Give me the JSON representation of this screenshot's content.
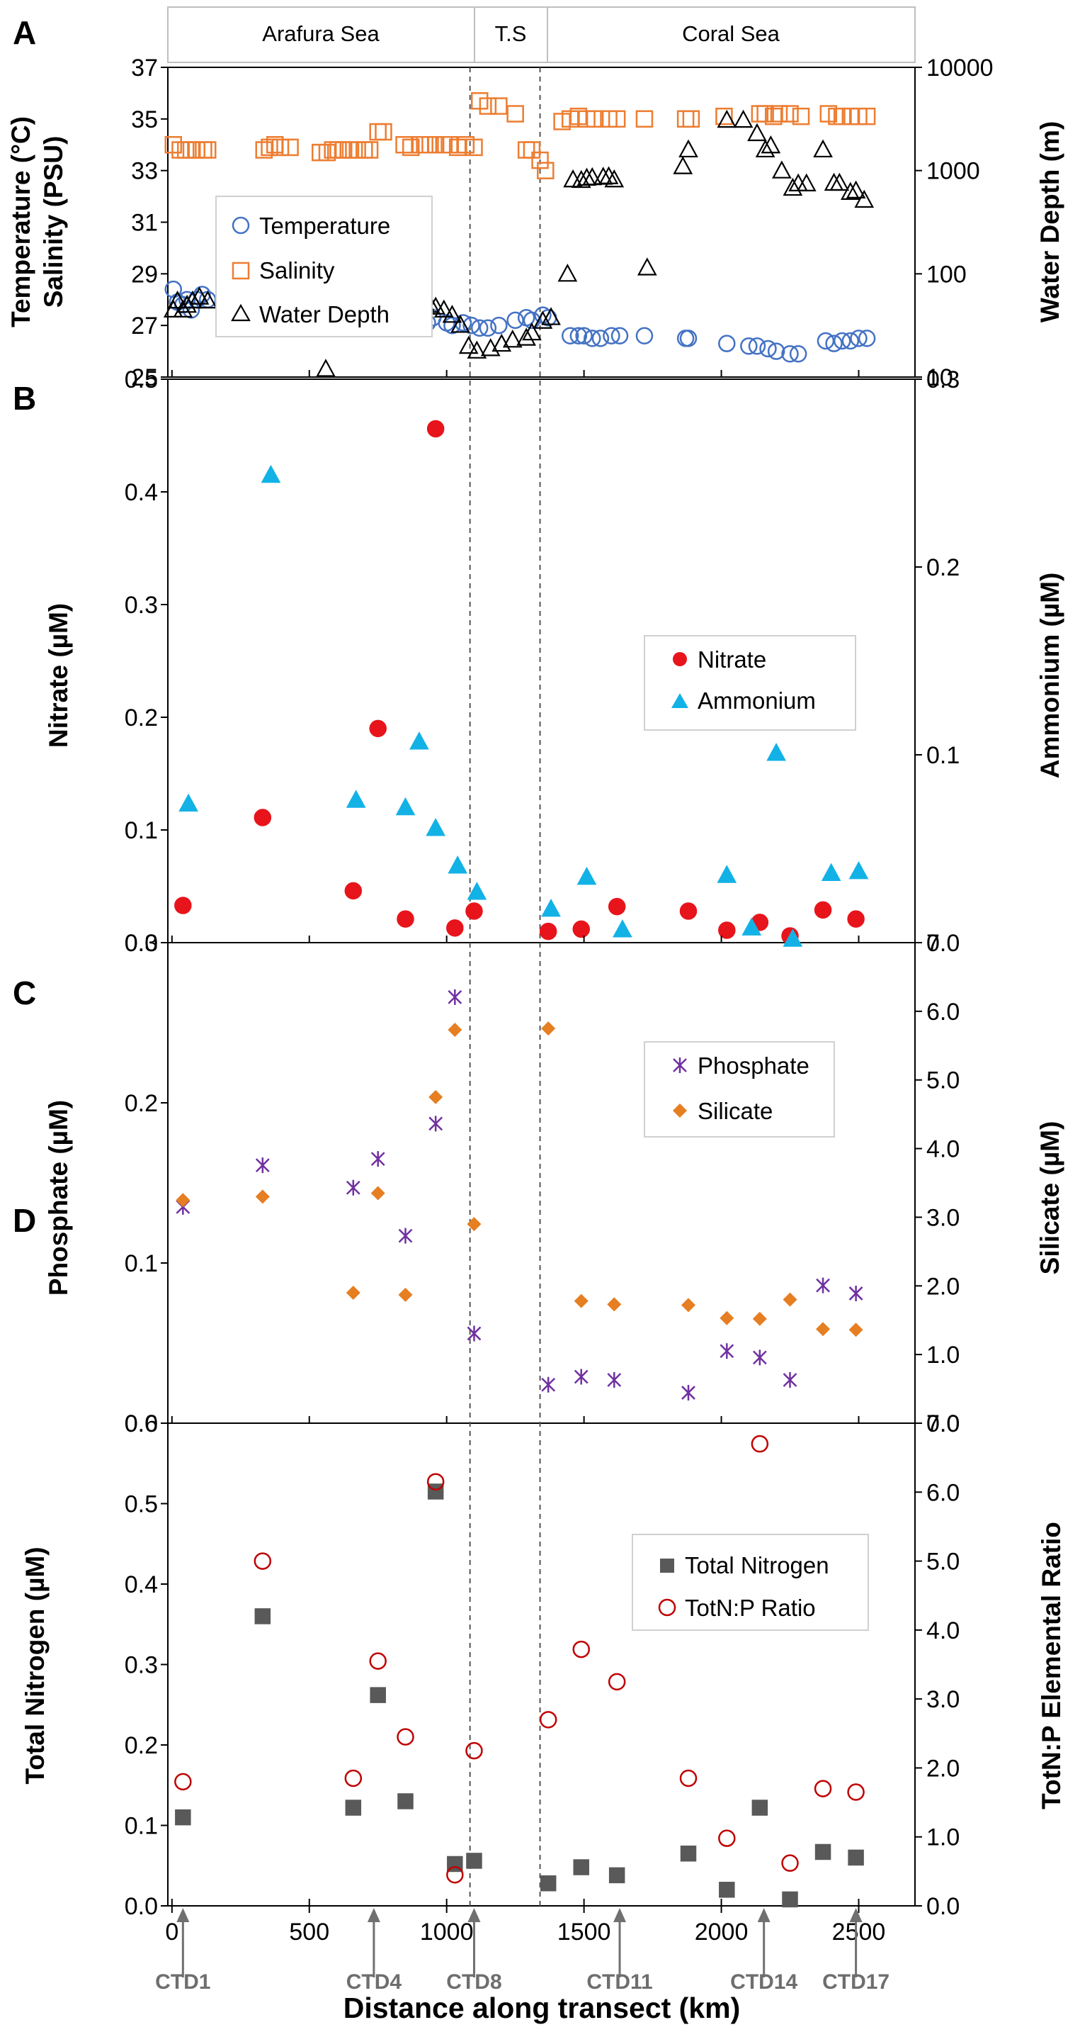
{
  "figure": {
    "xlabel": "Distance along transect (km)",
    "xticks": [
      "0",
      "500",
      "1000",
      "1500",
      "2000",
      "2500"
    ],
    "regions": [
      "Arafura Sea",
      "T.S",
      "Coral Sea"
    ],
    "ctd_labels": [
      {
        "label": "CTD1",
        "km": 40
      },
      {
        "label": "CTD4",
        "km": 735
      },
      {
        "label": "CTD8",
        "km": 1100
      },
      {
        "label": "CTD11",
        "km": 1630
      },
      {
        "label": "CTD14",
        "km": 2155
      },
      {
        "label": "CTD17",
        "km": 2490
      }
    ],
    "dividers_km": [
      1085,
      1340
    ]
  },
  "colors": {
    "blue": "#4472C4",
    "orange": "#ED7D31",
    "black": "#000000",
    "red": "#E8141B",
    "cyan": "#12B2E6",
    "purple": "#7030A0",
    "orange_fill": "#E67E22",
    "gray": "#595959",
    "darkred": "#C00000"
  },
  "chart_data": [
    {
      "panel": "A",
      "type": "scatter",
      "ylabel_left": [
        "Temperature (°C)",
        "Salinity (PSU)"
      ],
      "ylabel_right": "Water Depth (m)",
      "yleft_ticks": [
        "25",
        "27",
        "29",
        "31",
        "33",
        "35",
        "37"
      ],
      "yleft_lim": [
        25,
        37
      ],
      "yright_ticks": [
        "10",
        "100",
        "1000",
        "10000"
      ],
      "yright_lim_log": [
        10,
        10000
      ],
      "legend": [
        "Temperature",
        "Salinity",
        "Water Depth"
      ],
      "series": [
        {
          "name": "Temperature",
          "axis": "left",
          "x": [
            5,
            20,
            40,
            55,
            70,
            90,
            110,
            130,
            330,
            350,
            370,
            390,
            420,
            530,
            560,
            580,
            600,
            620,
            640,
            660,
            680,
            700,
            720,
            750,
            770,
            840,
            870,
            900,
            910,
            930,
            950,
            1000,
            1020,
            1060,
            1090,
            1120,
            1150,
            1190,
            1250,
            1290,
            1310,
            1350,
            1370,
            1450,
            1480,
            1500,
            1530,
            1560,
            1600,
            1630,
            1720,
            1870,
            1880,
            2020,
            2100,
            2130,
            2170,
            2200,
            2250,
            2280,
            2380,
            2410,
            2440,
            2470,
            2500,
            2530
          ],
          "values": [
            28.4,
            27.9,
            27.8,
            28.0,
            27.6,
            28.0,
            28.2,
            28.0,
            27.8,
            27.7,
            27.8,
            27.6,
            27.4,
            27.0,
            27.2,
            27.3,
            27.5,
            27.3,
            27.4,
            27.3,
            27.4,
            27.3,
            27.4,
            27.2,
            27.1,
            27.3,
            27.2,
            27.2,
            27.4,
            27.1,
            27.3,
            27.1,
            27.0,
            27.1,
            27.0,
            26.9,
            26.9,
            27.0,
            27.2,
            27.3,
            27.2,
            27.4,
            27.3,
            26.6,
            26.6,
            26.6,
            26.5,
            26.5,
            26.6,
            26.6,
            26.6,
            26.5,
            26.5,
            26.3,
            26.2,
            26.2,
            26.1,
            26.0,
            25.9,
            25.9,
            26.4,
            26.3,
            26.4,
            26.4,
            26.5,
            26.5
          ]
        },
        {
          "name": "Salinity",
          "axis": "left",
          "x": [
            5,
            30,
            50,
            70,
            90,
            115,
            130,
            335,
            355,
            375,
            395,
            430,
            540,
            565,
            585,
            605,
            625,
            650,
            675,
            700,
            720,
            750,
            770,
            845,
            870,
            905,
            920,
            940,
            960,
            990,
            1010,
            1040,
            1070,
            1100,
            1120,
            1150,
            1190,
            1250,
            1290,
            1310,
            1340,
            1360,
            1420,
            1450,
            1480,
            1510,
            1540,
            1590,
            1620,
            1720,
            1870,
            1890,
            2010,
            2140,
            2160,
            2190,
            2210,
            2250,
            2290,
            2390,
            2420,
            2440,
            2470,
            2500,
            2530
          ],
          "values": [
            34.0,
            33.8,
            33.8,
            33.8,
            33.8,
            33.8,
            33.8,
            33.8,
            33.9,
            34.0,
            33.9,
            33.9,
            33.7,
            33.7,
            33.8,
            33.8,
            33.8,
            33.8,
            33.8,
            33.8,
            33.8,
            34.5,
            34.5,
            34.0,
            33.9,
            34.0,
            34.0,
            34.0,
            34.0,
            34.0,
            34.0,
            33.9,
            34.0,
            33.9,
            35.7,
            35.5,
            35.5,
            35.2,
            33.8,
            33.8,
            33.4,
            33.0,
            34.9,
            35.0,
            35.1,
            35.0,
            35.0,
            35.0,
            35.0,
            35.0,
            35.0,
            35.0,
            35.1,
            35.2,
            35.2,
            35.1,
            35.2,
            35.2,
            35.1,
            35.2,
            35.1,
            35.1,
            35.1,
            35.1,
            35.1
          ]
        },
        {
          "name": "Water Depth",
          "axis": "right",
          "x": [
            5,
            20,
            40,
            55,
            75,
            100,
            130,
            325,
            350,
            370,
            395,
            420,
            560,
            575,
            600,
            620,
            640,
            665,
            690,
            710,
            730,
            755,
            780,
            840,
            870,
            900,
            920,
            940,
            960,
            990,
            1020,
            1050,
            1080,
            1110,
            1160,
            1200,
            1240,
            1290,
            1310,
            1350,
            1380,
            1440,
            1460,
            1490,
            1510,
            1530,
            1570,
            1590,
            1610,
            1730,
            1860,
            1880,
            2020,
            2080,
            2130,
            2160,
            2180,
            2220,
            2260,
            2280,
            2310,
            2370,
            2410,
            2430,
            2470,
            2490,
            2520
          ],
          "values": [
            45,
            55,
            45,
            50,
            55,
            60,
            55,
            35,
            45,
            42,
            40,
            40,
            12,
            55,
            50,
            45,
            48,
            45,
            50,
            45,
            48,
            50,
            52,
            45,
            50,
            55,
            52,
            50,
            48,
            45,
            40,
            32,
            20,
            18,
            19,
            21,
            23,
            24,
            27,
            35,
            38,
            100,
            820,
            810,
            850,
            860,
            870,
            880,
            820,
            115,
            1100,
            1600,
            3100,
            3100,
            2300,
            1600,
            1750,
            1000,
            680,
            750,
            750,
            1600,
            760,
            760,
            620,
            640,
            520
          ]
        }
      ]
    },
    {
      "panel": "B",
      "type": "scatter",
      "ylabel_left": "Nitrate (µM)",
      "ylabel_right": "Ammonium (µM)",
      "yleft_ticks": [
        "0.0",
        "0.1",
        "0.2",
        "0.3",
        "0.4",
        "0.5"
      ],
      "yleft_lim": [
        0,
        0.5
      ],
      "yright_ticks": [
        "0",
        "0.1",
        "0.2",
        "0.3"
      ],
      "yright_lim": [
        0,
        0.3
      ],
      "legend": [
        "Nitrate",
        "Ammonium"
      ],
      "series": [
        {
          "name": "Nitrate",
          "axis": "left",
          "x": [
            40,
            330,
            660,
            750,
            850,
            960,
            1030,
            1100,
            1370,
            1490,
            1620,
            1880,
            2020,
            2140,
            2250,
            2370,
            2490
          ],
          "values": [
            0.033,
            0.111,
            0.046,
            0.19,
            0.021,
            0.456,
            0.013,
            0.028,
            0.01,
            0.012,
            0.032,
            0.028,
            0.011,
            0.018,
            0.006,
            0.029,
            0.021
          ]
        },
        {
          "name": "Ammonium",
          "axis": "right",
          "x": [
            60,
            360,
            670,
            850,
            900,
            960,
            1040,
            1110,
            1380,
            1510,
            1640,
            2020,
            2110,
            2200,
            2260,
            2400,
            2500
          ],
          "values": [
            0.074,
            0.249,
            0.076,
            0.072,
            0.107,
            0.061,
            0.041,
            0.027,
            0.018,
            0.035,
            0.007,
            0.036,
            0.008,
            0.101,
            0.002,
            0.037,
            0.038
          ]
        }
      ]
    },
    {
      "panel": "C",
      "type": "scatter",
      "ylabel_left": "Phosphate (µM)",
      "ylabel_right": "Silicate (µM)",
      "yleft_ticks": [
        "0.0",
        "0.1",
        "0.2",
        "0.3"
      ],
      "yleft_lim": [
        0,
        0.3
      ],
      "yright_ticks": [
        "0.0",
        "1.0",
        "2.0",
        "3.0",
        "4.0",
        "5.0",
        "6.0",
        "7.0"
      ],
      "yright_lim": [
        0,
        7
      ],
      "legend": [
        "Phosphate",
        "Silicate"
      ],
      "series": [
        {
          "name": "Phosphate",
          "axis": "left",
          "x": [
            40,
            330,
            660,
            750,
            850,
            960,
            1030,
            1100,
            1370,
            1490,
            1610,
            1880,
            2020,
            2140,
            2250,
            2370,
            2490
          ],
          "values": [
            0.135,
            0.161,
            0.147,
            0.165,
            0.117,
            0.187,
            0.266,
            0.056,
            0.024,
            0.029,
            0.027,
            0.019,
            0.045,
            0.041,
            0.027,
            0.086,
            0.081
          ]
        },
        {
          "name": "Silicate",
          "axis": "right",
          "x": [
            40,
            330,
            660,
            750,
            850,
            960,
            1030,
            1100,
            1370,
            1490,
            1610,
            1880,
            2020,
            2140,
            2250,
            2370,
            2490
          ],
          "values": [
            3.25,
            3.3,
            1.9,
            3.35,
            1.87,
            4.75,
            5.73,
            2.9,
            5.75,
            1.78,
            1.73,
            1.72,
            1.53,
            1.52,
            1.8,
            1.37,
            1.36
          ]
        }
      ]
    },
    {
      "panel": "D",
      "type": "scatter",
      "ylabel_left": "Total Nitrogen (µM)",
      "ylabel_right": "TotN:P Elemental Ratio",
      "yleft_ticks": [
        "0.0",
        "0.1",
        "0.2",
        "0.3",
        "0.4",
        "0.5",
        "0.6"
      ],
      "yleft_lim": [
        0,
        0.6
      ],
      "yright_ticks": [
        "0.0",
        "1.0",
        "2.0",
        "3.0",
        "4.0",
        "5.0",
        "6.0",
        "7.0"
      ],
      "yright_lim": [
        0,
        7
      ],
      "legend": [
        "Total Nitrogen",
        "TotN:P Ratio"
      ],
      "series": [
        {
          "name": "Total Nitrogen",
          "axis": "left",
          "x": [
            40,
            330,
            660,
            750,
            850,
            960,
            1030,
            1100,
            1370,
            1490,
            1620,
            1880,
            2020,
            2140,
            2250,
            2370,
            2490
          ],
          "values": [
            0.11,
            0.36,
            0.122,
            0.262,
            0.13,
            0.515,
            0.052,
            0.056,
            0.028,
            0.048,
            0.038,
            0.065,
            0.02,
            0.122,
            0.008,
            0.067,
            0.06
          ]
        },
        {
          "name": "TotN:P Ratio",
          "axis": "right",
          "x": [
            40,
            330,
            660,
            750,
            850,
            960,
            1030,
            1100,
            1370,
            1490,
            1620,
            1880,
            2020,
            2140,
            2250,
            2370,
            2490
          ],
          "values": [
            1.8,
            5.0,
            1.85,
            3.55,
            2.45,
            6.15,
            0.45,
            2.25,
            2.7,
            3.72,
            3.25,
            1.85,
            0.98,
            6.7,
            0.62,
            1.7,
            1.65
          ]
        }
      ]
    }
  ]
}
